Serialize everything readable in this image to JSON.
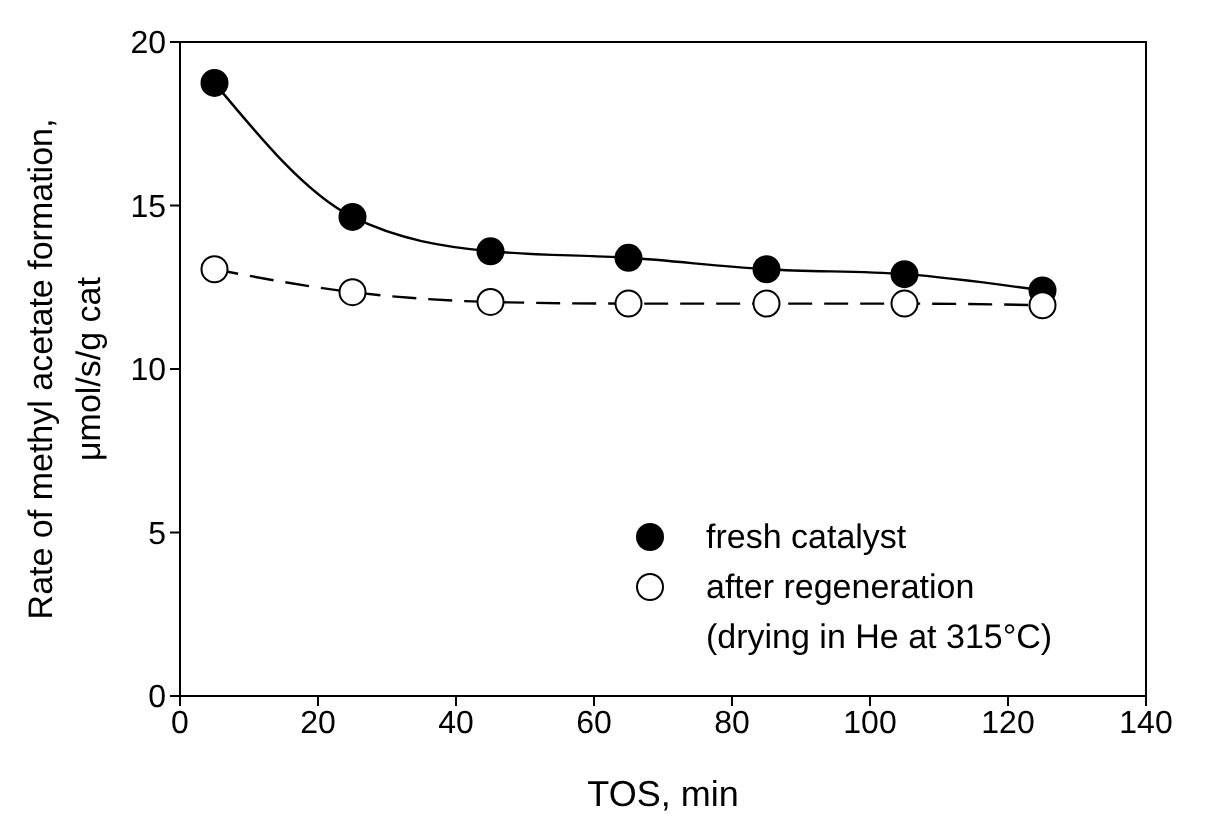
{
  "chart_data": {
    "type": "line",
    "xlabel": "TOS, min",
    "ylabel": "Rate of methyl acetate formation,\nμmol/s/g cat",
    "x": [
      5,
      25,
      45,
      65,
      85,
      105,
      125
    ],
    "xlim": [
      0,
      140
    ],
    "xticks": [
      0,
      20,
      40,
      60,
      80,
      100,
      120,
      140
    ],
    "ylim": [
      0,
      20
    ],
    "yticks": [
      0,
      5,
      10,
      15,
      20
    ],
    "grid": false,
    "legend": "bottom right",
    "marker": "circle",
    "series": [
      {
        "name": "fresh catalyst",
        "color": "#000000",
        "line_style": "solid",
        "values": [
          18.75,
          14.65,
          13.6,
          13.4,
          13.05,
          12.9,
          12.4
        ]
      },
      {
        "name": "after regeneration\n(drying in He at 315°C)",
        "color": "#ffffff",
        "line_style": "dashed",
        "values": [
          13.05,
          12.35,
          12.05,
          12.0,
          12.0,
          12.0,
          11.95
        ]
      }
    ]
  }
}
